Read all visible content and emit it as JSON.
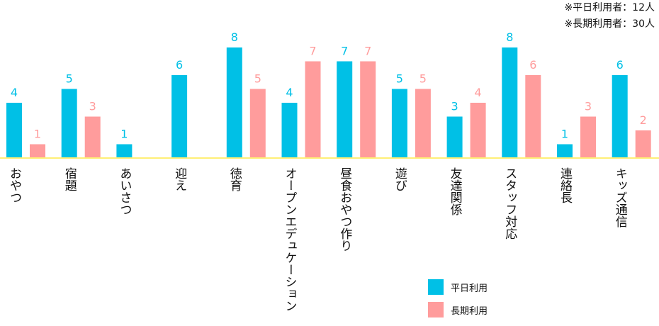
{
  "notes": [
    "※平日利用者：12人",
    "※長期利用者：30人"
  ],
  "colors": {
    "weekday": "#00c0e6",
    "longterm": "#ff9c9c",
    "baseline": "#ffef75"
  },
  "legend": [
    {
      "label": "平日利用",
      "color": "#00c0e6"
    },
    {
      "label": "長期利用",
      "color": "#ff9c9c"
    }
  ],
  "chart_data": {
    "type": "bar",
    "title": "",
    "xlabel": "",
    "ylabel": "",
    "ylim": [
      0,
      8
    ],
    "grid": false,
    "legend_position": "bottom-right",
    "categories": [
      "おやつ",
      "宿題",
      "あいさつ",
      "迎え",
      "徳育",
      "オープンエデュケーション",
      "昼食おやつ作り",
      "遊び",
      "友達関係",
      "スタッフ対応",
      "連絡長",
      "キッズ通信"
    ],
    "series": [
      {
        "name": "平日利用",
        "values": [
          4,
          5,
          1,
          6,
          8,
          4,
          7,
          5,
          3,
          8,
          1,
          6
        ]
      },
      {
        "name": "長期利用",
        "values": [
          1,
          3,
          0,
          0,
          5,
          7,
          7,
          5,
          4,
          6,
          3,
          2
        ]
      }
    ]
  }
}
